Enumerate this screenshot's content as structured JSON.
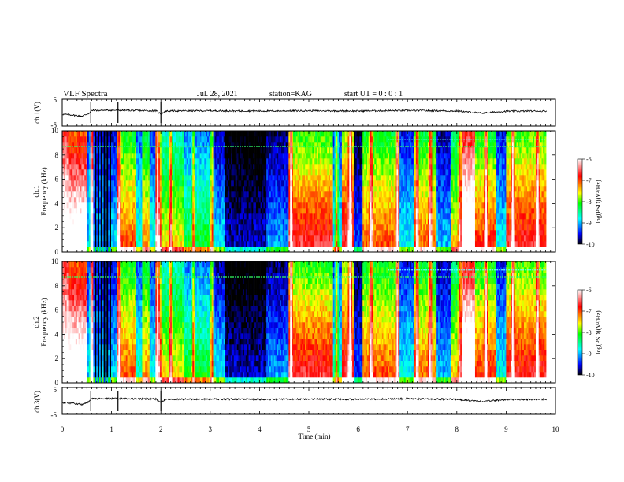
{
  "header": {
    "title": "VLF Spectra",
    "date": "Jul. 28, 2021",
    "station": "station=KAG",
    "start": "start UT =  0 : 0 : 1"
  },
  "chart_data": {
    "type": "heatmap",
    "xlabel": "Time (min)",
    "xlim": [
      0,
      10
    ],
    "xticks": [
      "0",
      "1",
      "2",
      "3",
      "4",
      "5",
      "6",
      "7",
      "8",
      "9",
      "10"
    ],
    "waveform_panels": [
      {
        "ylabel": "ch.1(V)",
        "ylim": [
          -5,
          5
        ],
        "yticks": [
          "5",
          "-5"
        ],
        "trace_color": "#000000",
        "trace": [
          [
            0.0,
            -0.6
          ],
          [
            0.2,
            -0.9
          ],
          [
            0.4,
            -1.3
          ],
          [
            0.55,
            -0.2
          ],
          [
            0.6,
            0.8
          ],
          [
            1.0,
            0.9
          ],
          [
            1.5,
            0.8
          ],
          [
            1.9,
            0.7
          ],
          [
            2.0,
            -0.5
          ],
          [
            2.1,
            0.6
          ],
          [
            3.0,
            0.7
          ],
          [
            4.0,
            0.6
          ],
          [
            5.0,
            0.7
          ],
          [
            6.0,
            0.6
          ],
          [
            7.0,
            0.8
          ],
          [
            8.0,
            0.6
          ],
          [
            8.5,
            -0.2
          ],
          [
            9.0,
            0.5
          ],
          [
            9.8,
            0.6
          ]
        ]
      },
      {
        "ylabel": "ch.3(V)",
        "ylim": [
          -5,
          5
        ],
        "yticks": [
          "5",
          "-5"
        ],
        "trace_color": "#000000",
        "trace": [
          [
            0.0,
            -0.6
          ],
          [
            0.2,
            -0.9
          ],
          [
            0.4,
            -1.3
          ],
          [
            0.55,
            -0.2
          ],
          [
            0.6,
            0.8
          ],
          [
            1.0,
            0.9
          ],
          [
            1.5,
            0.8
          ],
          [
            1.9,
            0.7
          ],
          [
            2.0,
            -0.5
          ],
          [
            2.1,
            0.6
          ],
          [
            3.0,
            0.7
          ],
          [
            4.0,
            0.6
          ],
          [
            5.0,
            0.7
          ],
          [
            6.0,
            0.6
          ],
          [
            7.0,
            0.8
          ],
          [
            8.0,
            0.6
          ],
          [
            8.5,
            -0.2
          ],
          [
            9.0,
            0.5
          ],
          [
            9.8,
            0.6
          ]
        ]
      }
    ],
    "spectrogram_panels": [
      {
        "channel_label": "ch.1",
        "ylabel": "Frequency (kHz)",
        "ylim": [
          0,
          10
        ],
        "yticks": [
          "0",
          "2",
          "4",
          "6",
          "8",
          "10"
        ]
      },
      {
        "channel_label": "ch.2",
        "ylabel": "Frequency (kHz)",
        "ylim": [
          0,
          10
        ],
        "yticks": [
          "0",
          "2",
          "4",
          "6",
          "8",
          "10"
        ]
      }
    ],
    "colorbar": {
      "label": "log(PSD)(V²/Hz)",
      "range": [
        -10,
        -6
      ],
      "ticks": [
        "-6",
        "-7",
        "-8",
        "-9",
        "-10"
      ],
      "colors": [
        "#000000",
        "#0000ff",
        "#00ffff",
        "#00ff00",
        "#ffff00",
        "#ff0000",
        "#ffffff"
      ]
    },
    "data_end_min": 9.82,
    "segments": [
      {
        "t0": 0.0,
        "t1": 0.12,
        "level": -6.4,
        "roll": 0.6
      },
      {
        "t0": 0.12,
        "t1": 0.5,
        "level": -6.8,
        "roll": 0.9
      },
      {
        "t0": 0.5,
        "t1": 0.57,
        "level": -9.2,
        "roll": 0.2
      },
      {
        "t0": 0.57,
        "t1": 0.62,
        "level": -7.5,
        "roll": 0.5
      },
      {
        "t0": 0.62,
        "t1": 0.98,
        "level": -9.8,
        "roll": 0.1,
        "stripes": true
      },
      {
        "t0": 0.98,
        "t1": 1.12,
        "level": -9.3,
        "roll": 0.3
      },
      {
        "t0": 1.12,
        "t1": 1.5,
        "level": -7.9,
        "roll": 0.6
      },
      {
        "t0": 1.5,
        "t1": 1.62,
        "level": -9.0,
        "roll": 0.3
      },
      {
        "t0": 1.62,
        "t1": 1.78,
        "level": -8.0,
        "roll": 0.5
      },
      {
        "t0": 1.78,
        "t1": 1.9,
        "level": -9.1,
        "roll": 0.3
      },
      {
        "t0": 1.9,
        "t1": 2.02,
        "level": -7.6,
        "roll": 0.6
      },
      {
        "t0": 2.02,
        "t1": 2.45,
        "level": -8.4,
        "roll": 0.6
      },
      {
        "t0": 2.45,
        "t1": 3.05,
        "level": -8.9,
        "roll": 0.5
      },
      {
        "t0": 3.05,
        "t1": 3.3,
        "level": -9.4,
        "roll": 0.4
      },
      {
        "t0": 3.3,
        "t1": 4.15,
        "level": -9.9,
        "roll": 0.2
      },
      {
        "t0": 4.15,
        "t1": 4.6,
        "level": -9.5,
        "roll": 0.3
      },
      {
        "t0": 4.6,
        "t1": 4.68,
        "level": -7.8,
        "roll": 0.5
      },
      {
        "t0": 4.68,
        "t1": 5.5,
        "level": -7.8,
        "roll": 0.8
      },
      {
        "t0": 5.5,
        "t1": 5.68,
        "level": -9.1,
        "roll": 0.3
      },
      {
        "t0": 5.68,
        "t1": 5.9,
        "level": -7.6,
        "roll": 0.7
      },
      {
        "t0": 5.9,
        "t1": 6.1,
        "level": -9.6,
        "roll": 0.2
      },
      {
        "t0": 6.1,
        "t1": 6.85,
        "level": -7.9,
        "roll": 0.6
      },
      {
        "t0": 6.85,
        "t1": 7.15,
        "level": -9.2,
        "roll": 0.3
      },
      {
        "t0": 7.15,
        "t1": 7.6,
        "level": -8.0,
        "roll": 0.6
      },
      {
        "t0": 7.6,
        "t1": 7.9,
        "level": -9.4,
        "roll": 0.3
      },
      {
        "t0": 7.9,
        "t1": 8.1,
        "level": -8.2,
        "roll": 0.5
      },
      {
        "t0": 8.1,
        "t1": 8.38,
        "level": -6.5,
        "roll": 0.9
      },
      {
        "t0": 8.38,
        "t1": 8.8,
        "level": -7.9,
        "roll": 0.7
      },
      {
        "t0": 8.8,
        "t1": 9.0,
        "level": -9.2,
        "roll": 0.3
      },
      {
        "t0": 9.0,
        "t1": 9.82,
        "level": -7.7,
        "roll": 0.7
      }
    ],
    "bursts": [
      0.58,
      1.13,
      1.92,
      2.18,
      2.65,
      3.02,
      4.62,
      5.55,
      5.82,
      6.25,
      6.78,
      7.18,
      7.45,
      8.05,
      8.58,
      9.12,
      9.62
    ],
    "tone_lines": [
      {
        "freq_khz": 8.7,
        "t0": 0.0,
        "t1": 9.82,
        "color": "#33ff66"
      },
      {
        "freq_khz": 9.3,
        "t0": 6.6,
        "t1": 9.82,
        "color": "#66ffff"
      }
    ]
  }
}
